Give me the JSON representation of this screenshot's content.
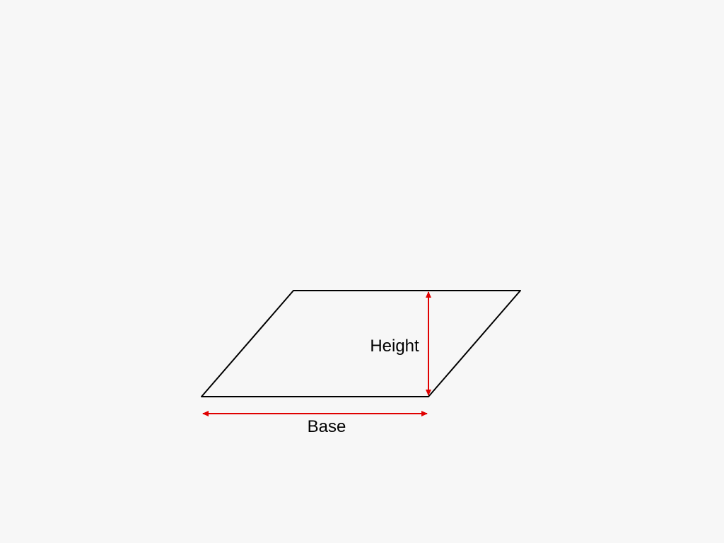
{
  "diagram": {
    "height_label": "Height",
    "base_label": "Base",
    "shape_color": "#000000",
    "dimension_color": "#e00000",
    "background_color": "#f7f7f7"
  }
}
